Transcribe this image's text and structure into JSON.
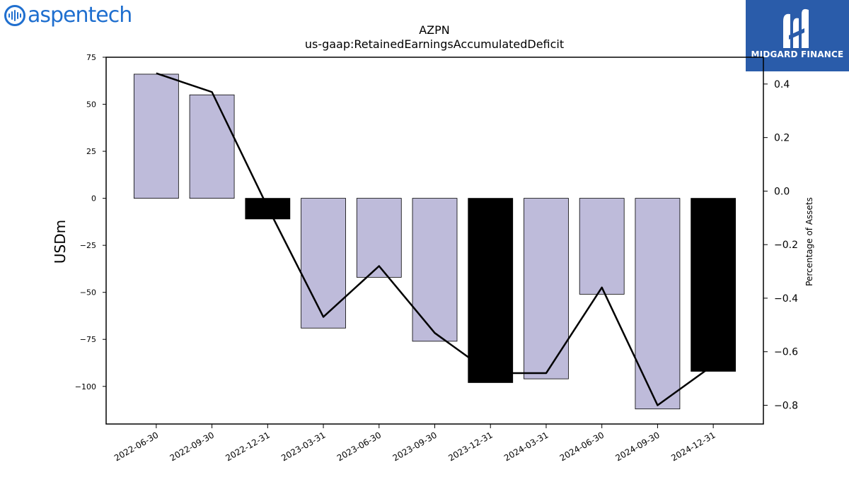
{
  "branding": {
    "left_logo_text": "aspentech",
    "right_logo_text": "MIDGARD FINANCE"
  },
  "chart_data": {
    "type": "bar",
    "title": "AZPN",
    "subtitle": "us-gaap:RetainedEarningsAccumulatedDeficit",
    "ylabel": "USDm",
    "y2label": "Percentage of Assets",
    "categories": [
      "2022-06-30",
      "2022-09-30",
      "2022-12-31",
      "2023-03-31",
      "2023-06-30",
      "2023-09-30",
      "2023-12-31",
      "2024-03-31",
      "2024-06-30",
      "2024-09-30",
      "2024-12-31"
    ],
    "values": [
      66,
      55,
      -11,
      -69,
      -42,
      -76,
      -98,
      -96,
      -51,
      -112,
      -92
    ],
    "bar_colors": [
      "#bebbda",
      "#bebbda",
      "#000000",
      "#bebbda",
      "#bebbda",
      "#bebbda",
      "#000000",
      "#bebbda",
      "#bebbda",
      "#bebbda",
      "#000000"
    ],
    "line_series": {
      "name": "Percentage of Assets",
      "values": [
        0.44,
        0.37,
        -0.06,
        -0.47,
        -0.28,
        -0.53,
        -0.68,
        -0.68,
        -0.36,
        -0.8,
        -0.65
      ]
    },
    "ylim": [
      -120,
      75
    ],
    "yticks": [
      75,
      50,
      25,
      0,
      -25,
      -50,
      -75,
      -100
    ],
    "y2lim": [
      -0.87,
      0.5
    ],
    "y2ticks": [
      0.4,
      0.2,
      0.0,
      -0.2,
      -0.4,
      -0.6,
      -0.8
    ],
    "grid": false,
    "legend": "none"
  }
}
